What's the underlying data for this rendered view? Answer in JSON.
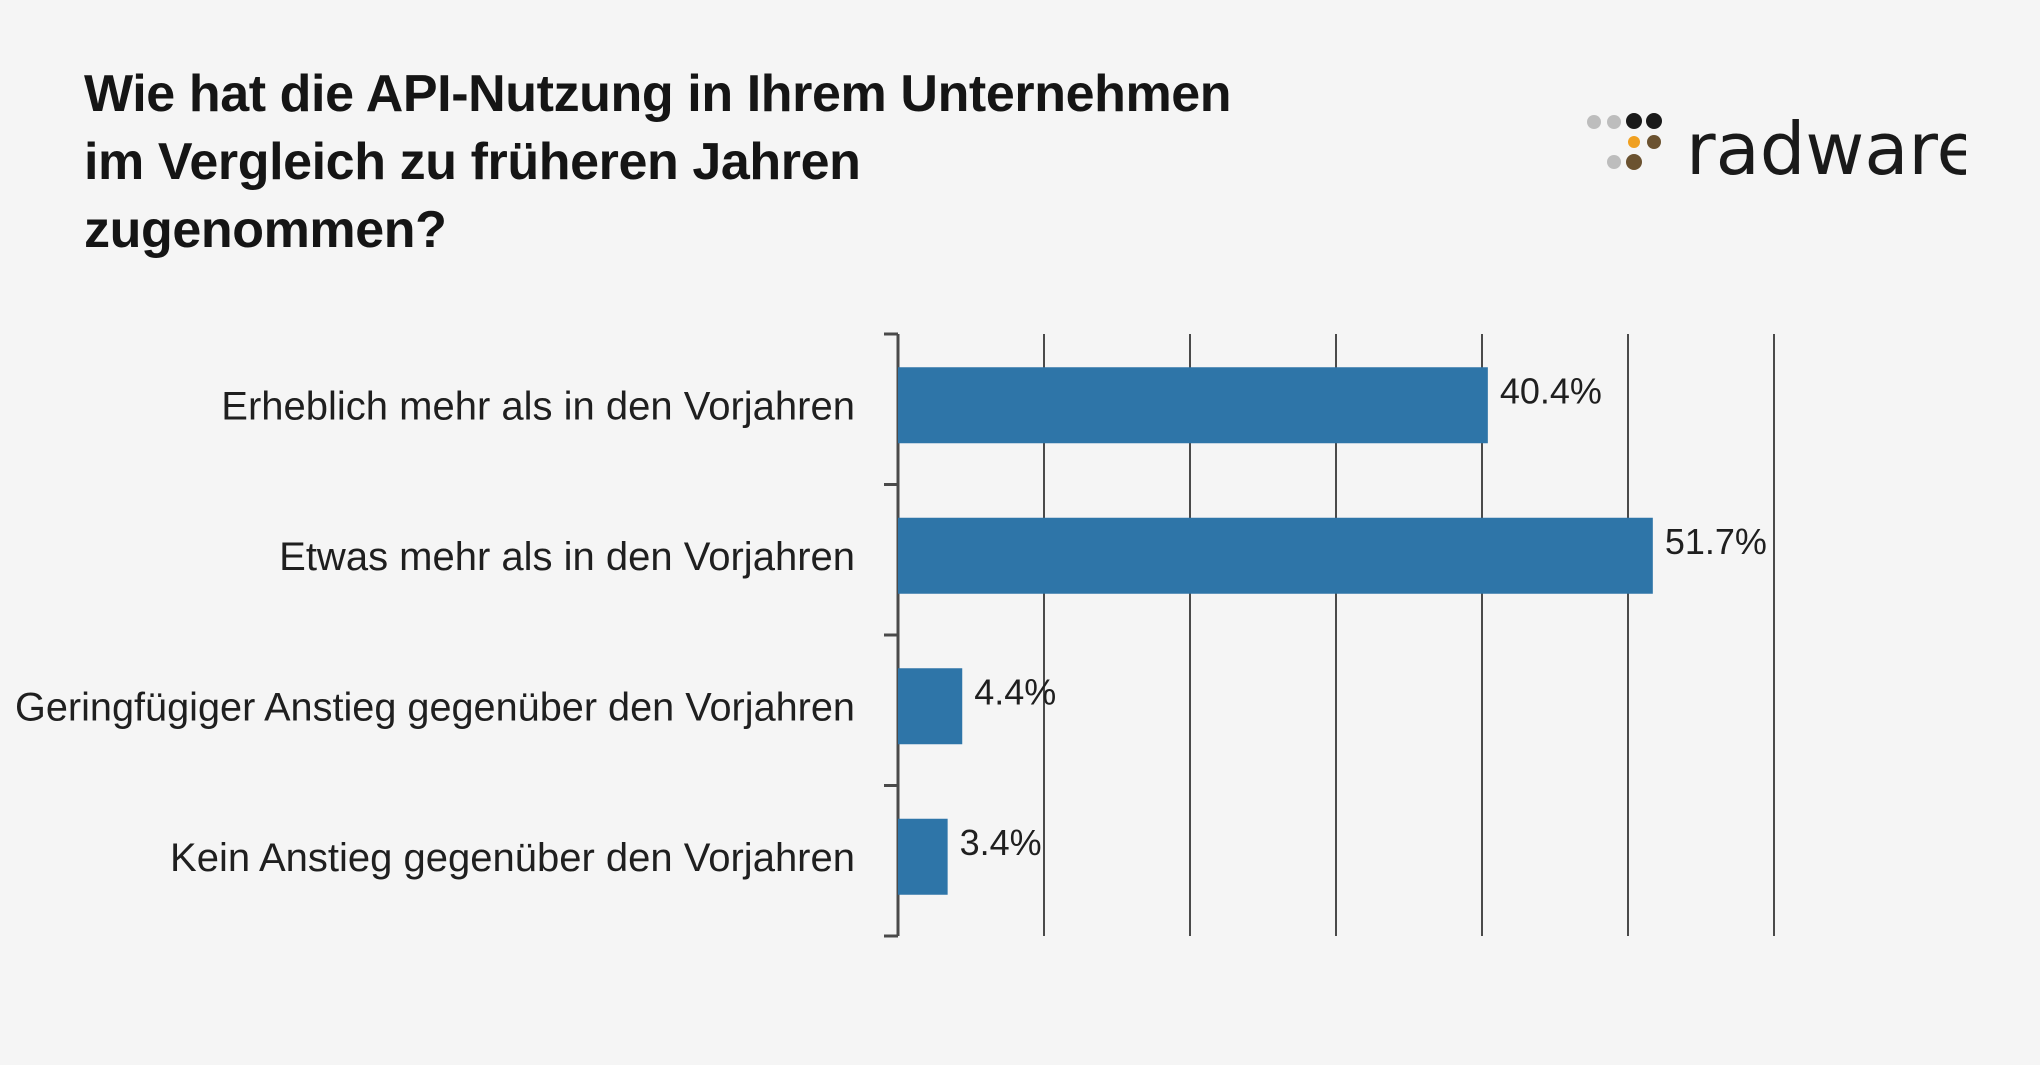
{
  "header": {
    "title": "Wie hat die API-Nutzung in Ihrem Unternehmen im Vergleich zu früheren Jahren zugenommen?"
  },
  "logo": {
    "text": "radware"
  },
  "colors": {
    "bar": "#2e75a8",
    "grid": "#4a4a4a",
    "background": "#f5f5f5",
    "label": "#1f1f1f",
    "logo_dark": "#1a1a1a",
    "logo_gray": "#bdbdbd",
    "logo_orange": "#f0a020",
    "logo_brown": "#6b5230"
  },
  "chart_data": {
    "type": "bar",
    "orientation": "horizontal",
    "title": "Wie hat die API-Nutzung in Ihrem Unternehmen im Vergleich zu früheren Jahren zugenommen?",
    "categories": [
      "Erheblich mehr als in den Vorjahren",
      "Etwas mehr als in den Vorjahren",
      "Geringfügiger Anstieg gegenüber den Vorjahren",
      "Kein Anstieg gegenüber den Vorjahren"
    ],
    "values": [
      40.4,
      51.7,
      4.4,
      3.4
    ],
    "data_labels": [
      "40.4%",
      "51.7%",
      "4.4%",
      "3.4%"
    ],
    "xlim": [
      0,
      60
    ],
    "x_gridlines": [
      10,
      20,
      30,
      40,
      50,
      60
    ],
    "unit": "%",
    "xlabel": "",
    "ylabel": "",
    "grid": true,
    "tick_labels_shown": false
  }
}
